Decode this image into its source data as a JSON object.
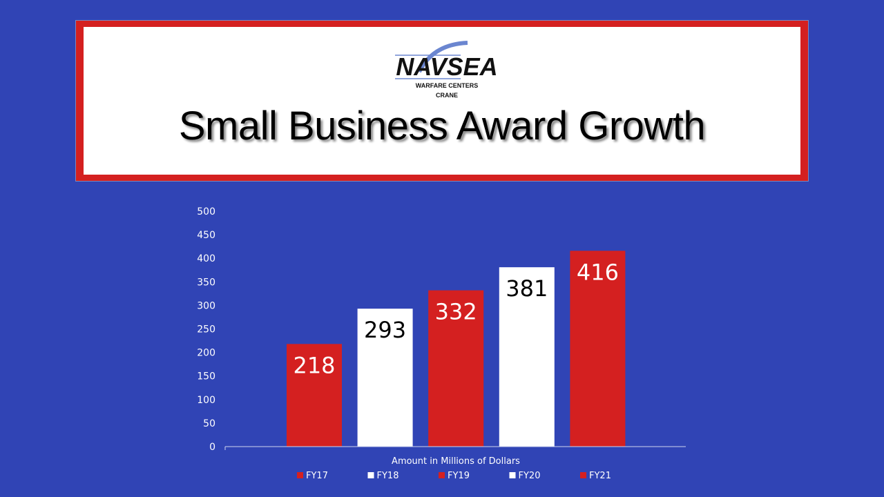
{
  "logo": {
    "name": "NAVSEA",
    "line1": "WARFARE CENTERS",
    "line2": "CRANE"
  },
  "title": "Small Business Award Growth",
  "colors": {
    "background": "#3044b5",
    "red": "#d42020",
    "white": "#ffffff",
    "banner_border": "#d42020"
  },
  "chart_data": {
    "type": "bar",
    "title": "Small Business Award Growth",
    "xlabel": "Amount in Millions of Dollars",
    "ylabel": "",
    "categories": [
      "FY17",
      "FY18",
      "FY19",
      "FY20",
      "FY21"
    ],
    "values": [
      218,
      293,
      332,
      381,
      416
    ],
    "bar_colors": [
      "#d42020",
      "#ffffff",
      "#d42020",
      "#ffffff",
      "#d42020"
    ],
    "label_colors": [
      "#ffffff",
      "#000000",
      "#ffffff",
      "#000000",
      "#ffffff"
    ],
    "ylim": [
      0,
      500
    ],
    "yticks": [
      0,
      50,
      100,
      150,
      200,
      250,
      300,
      350,
      400,
      450,
      500
    ],
    "grid": false,
    "legend": "bottom"
  }
}
